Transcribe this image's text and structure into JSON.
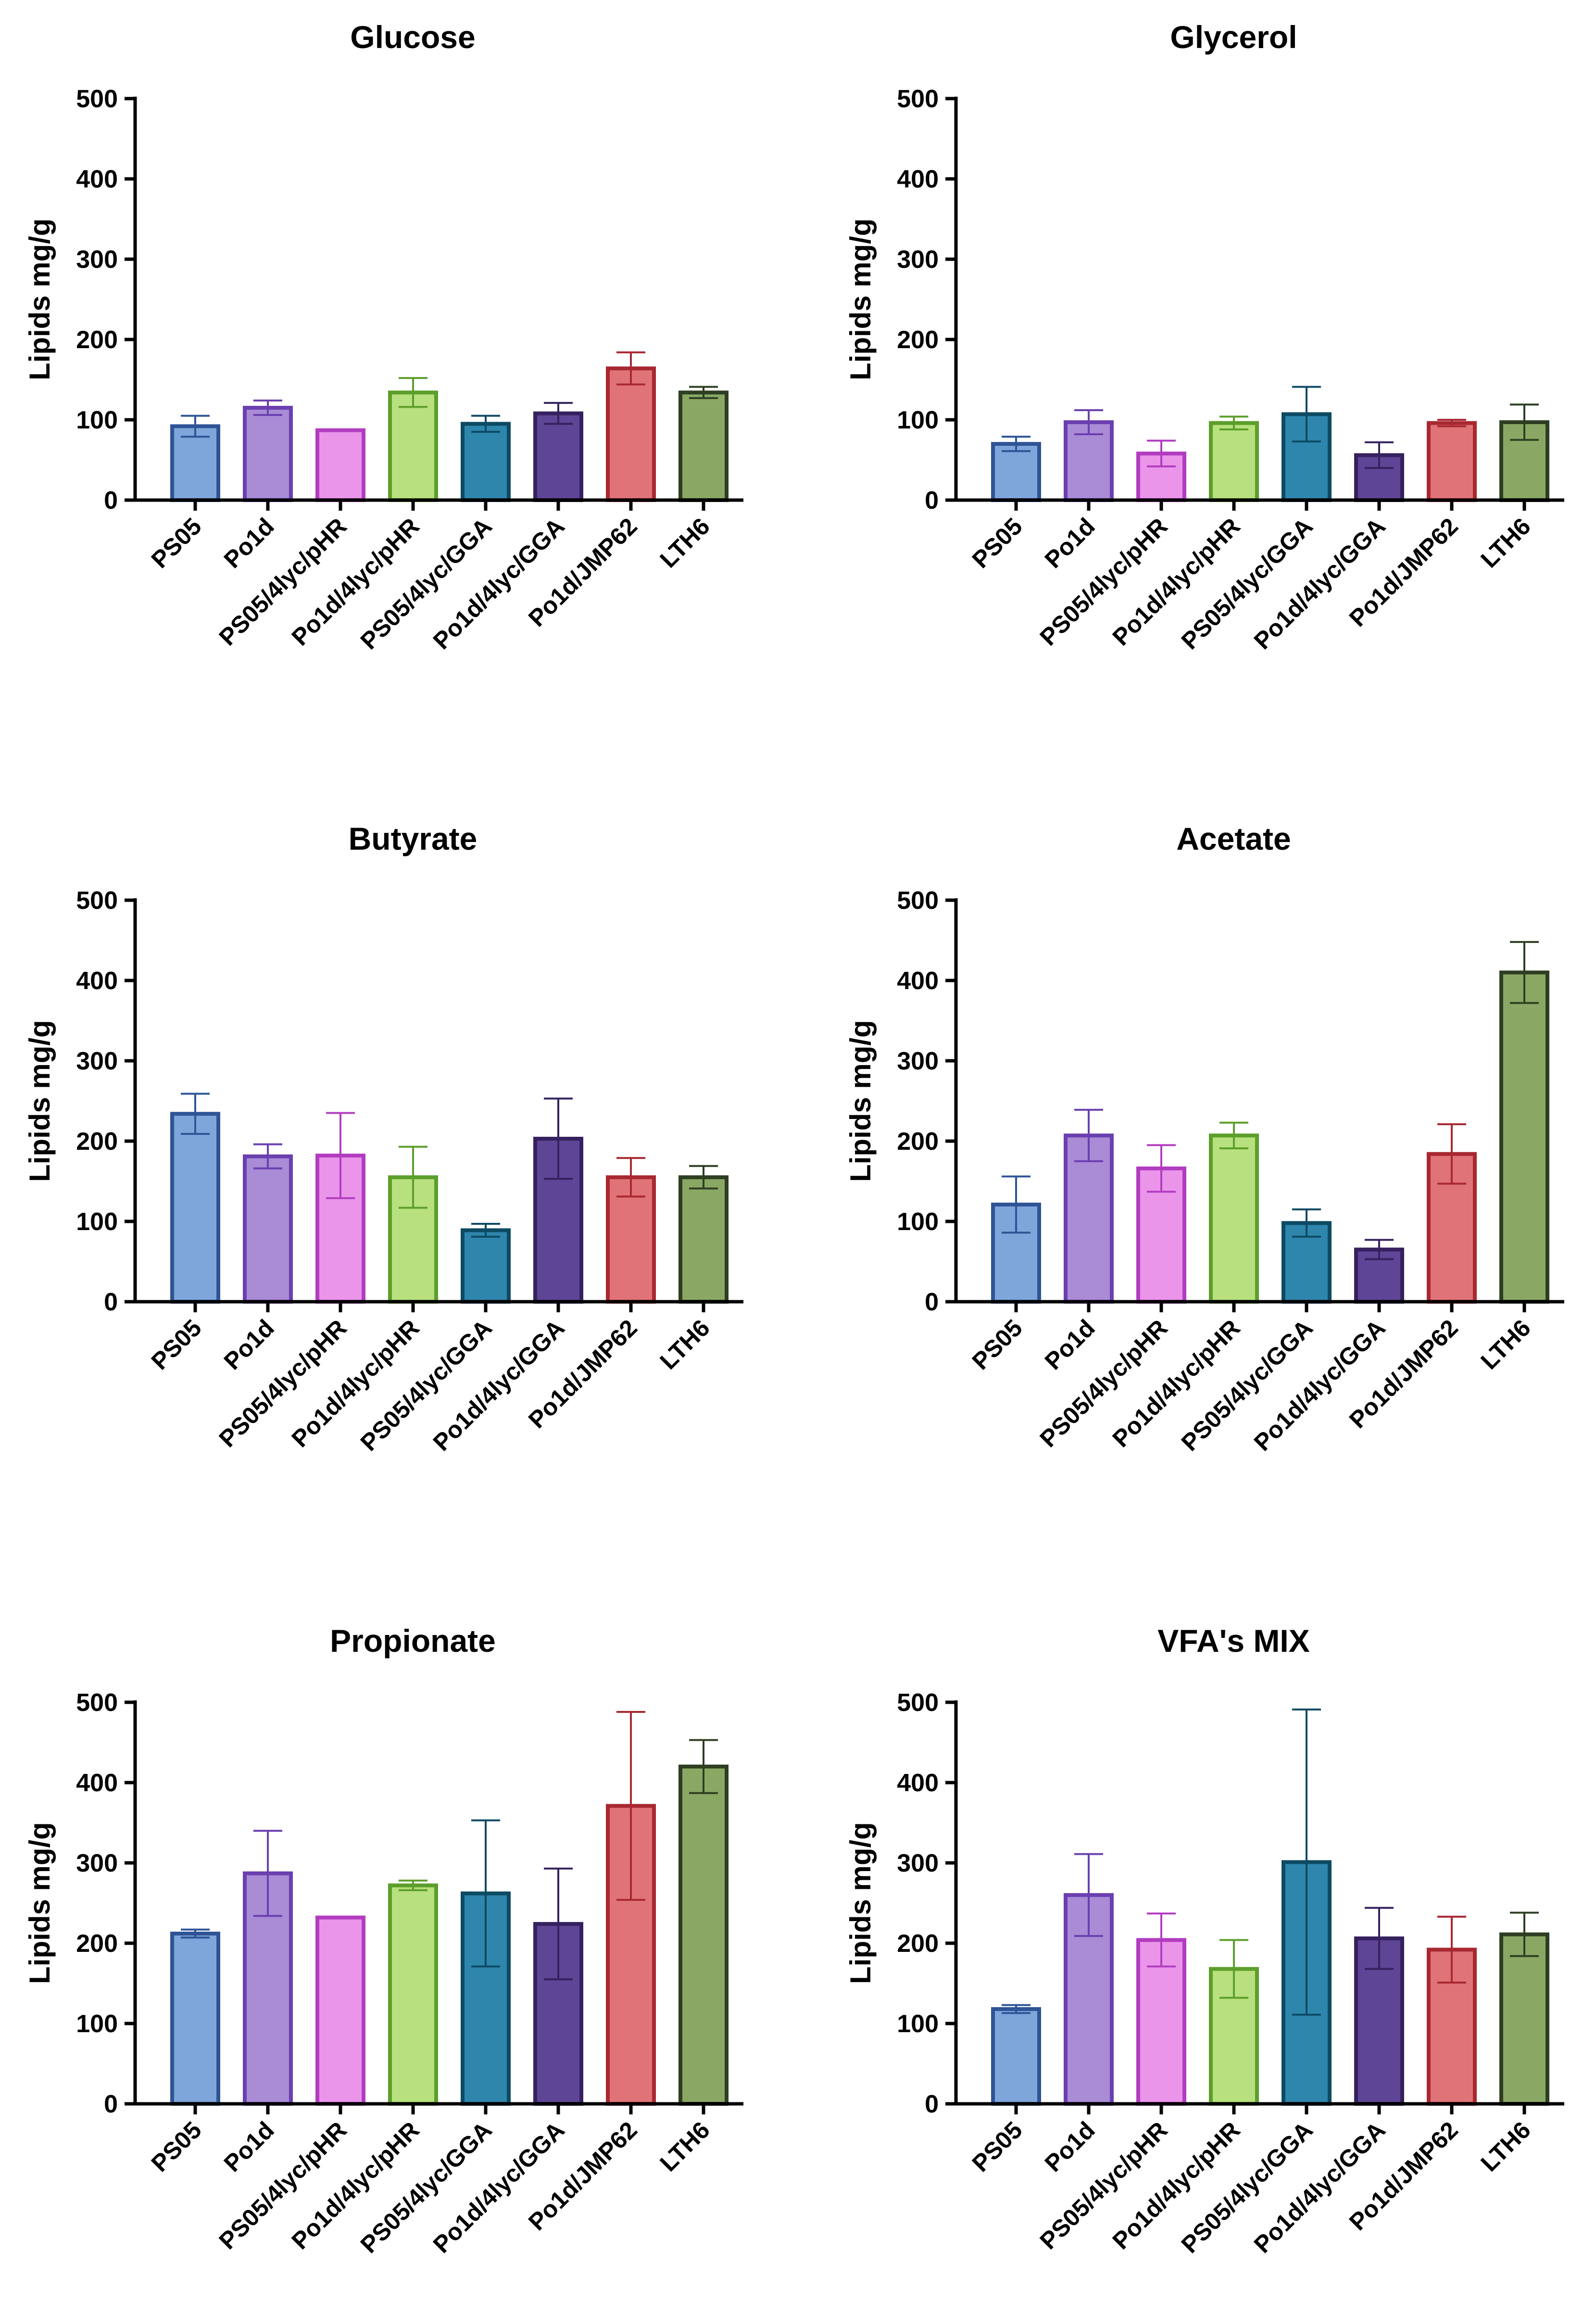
{
  "chart_data": [
    {
      "type": "bar",
      "title": "Glucose",
      "ylabel": "Lipids mg/g",
      "xlabel": "",
      "ylim": [
        0,
        500
      ],
      "yticks": [
        0,
        100,
        200,
        300,
        400,
        500
      ],
      "categories": [
        "PS05",
        "Po1d",
        "PS05/4lyc/pHR",
        "Po1d/4lyc/pHR",
        "PS05/4lyc/GGA",
        "Po1d/4lyc/GGA",
        "Po1d/JMP62",
        "LTH6"
      ],
      "values": [
        92,
        115,
        87,
        134,
        95,
        108,
        164,
        134
      ],
      "errors": [
        13,
        9,
        0,
        18,
        10,
        13,
        20,
        7
      ]
    },
    {
      "type": "bar",
      "title": "Glycerol",
      "ylabel": "Lipids mg/g",
      "xlabel": "",
      "ylim": [
        0,
        500
      ],
      "yticks": [
        0,
        100,
        200,
        300,
        400,
        500
      ],
      "categories": [
        "PS05",
        "Po1d",
        "PS05/4lyc/pHR",
        "Po1d/4lyc/pHR",
        "PS05/4lyc/GGA",
        "Po1d/4lyc/GGA",
        "Po1d/JMP62",
        "LTH6"
      ],
      "values": [
        70,
        97,
        58,
        96,
        107,
        56,
        96,
        97
      ],
      "errors": [
        9,
        15,
        16,
        8,
        34,
        16,
        4,
        22
      ]
    },
    {
      "type": "bar",
      "title": "Butyrate",
      "ylabel": "Lipids mg/g",
      "xlabel": "",
      "ylim": [
        0,
        500
      ],
      "yticks": [
        0,
        100,
        200,
        300,
        400,
        500
      ],
      "categories": [
        "PS05",
        "Po1d",
        "PS05/4lyc/pHR",
        "Po1d/4lyc/pHR",
        "PS05/4lyc/GGA",
        "Po1d/4lyc/GGA",
        "Po1d/JMP62",
        "LTH6"
      ],
      "values": [
        234,
        181,
        182,
        155,
        89,
        203,
        155,
        155
      ],
      "errors": [
        25,
        15,
        53,
        38,
        8,
        50,
        24,
        14
      ]
    },
    {
      "type": "bar",
      "title": "Acetate",
      "ylabel": "Lipids mg/g",
      "xlabel": "",
      "ylim": [
        0,
        500
      ],
      "yticks": [
        0,
        100,
        200,
        300,
        400,
        500
      ],
      "categories": [
        "PS05",
        "Po1d",
        "PS05/4lyc/pHR",
        "Po1d/4lyc/pHR",
        "PS05/4lyc/GGA",
        "Po1d/4lyc/GGA",
        "Po1d/JMP62",
        "LTH6"
      ],
      "values": [
        121,
        207,
        166,
        207,
        98,
        65,
        184,
        410
      ],
      "errors": [
        35,
        32,
        29,
        16,
        17,
        12,
        37,
        38
      ]
    },
    {
      "type": "bar",
      "title": "Propionate",
      "ylabel": "Lipids mg/g",
      "xlabel": "",
      "ylim": [
        0,
        500
      ],
      "yticks": [
        0,
        100,
        200,
        300,
        400,
        500
      ],
      "categories": [
        "PS05",
        "Po1d",
        "PS05/4lyc/pHR",
        "Po1d/4lyc/pHR",
        "PS05/4lyc/GGA",
        "Po1d/4lyc/GGA",
        "Po1d/JMP62",
        "LTH6"
      ],
      "values": [
        212,
        287,
        232,
        272,
        262,
        224,
        371,
        420
      ],
      "errors": [
        5,
        53,
        0,
        6,
        91,
        69,
        117,
        33
      ]
    },
    {
      "type": "bar",
      "title": "VFA's MIX",
      "ylabel": "Lipids mg/g",
      "xlabel": "",
      "ylim": [
        0,
        500
      ],
      "yticks": [
        0,
        100,
        200,
        300,
        400,
        500
      ],
      "categories": [
        "PS05",
        "Po1d",
        "PS05/4lyc/pHR",
        "Po1d/4lyc/pHR",
        "PS05/4lyc/GGA",
        "Po1d/4lyc/GGA",
        "Po1d/JMP62",
        "LTH6"
      ],
      "values": [
        118,
        260,
        204,
        168,
        301,
        206,
        192,
        211
      ],
      "errors": [
        5,
        51,
        33,
        36,
        190,
        38,
        41,
        27
      ]
    }
  ],
  "series_style": [
    {
      "fill": "#7fa6da",
      "stroke": "#2f5496"
    },
    {
      "fill": "#a98bd6",
      "stroke": "#6a3fb0"
    },
    {
      "fill": "#ea95ea",
      "stroke": "#b23cc0"
    },
    {
      "fill": "#b8e07e",
      "stroke": "#5c9e2b"
    },
    {
      "fill": "#2e86ad",
      "stroke": "#0d4a63"
    },
    {
      "fill": "#5f4596",
      "stroke": "#35215e"
    },
    {
      "fill": "#e07378",
      "stroke": "#a82831"
    },
    {
      "fill": "#8aa864",
      "stroke": "#2e3e22"
    }
  ]
}
